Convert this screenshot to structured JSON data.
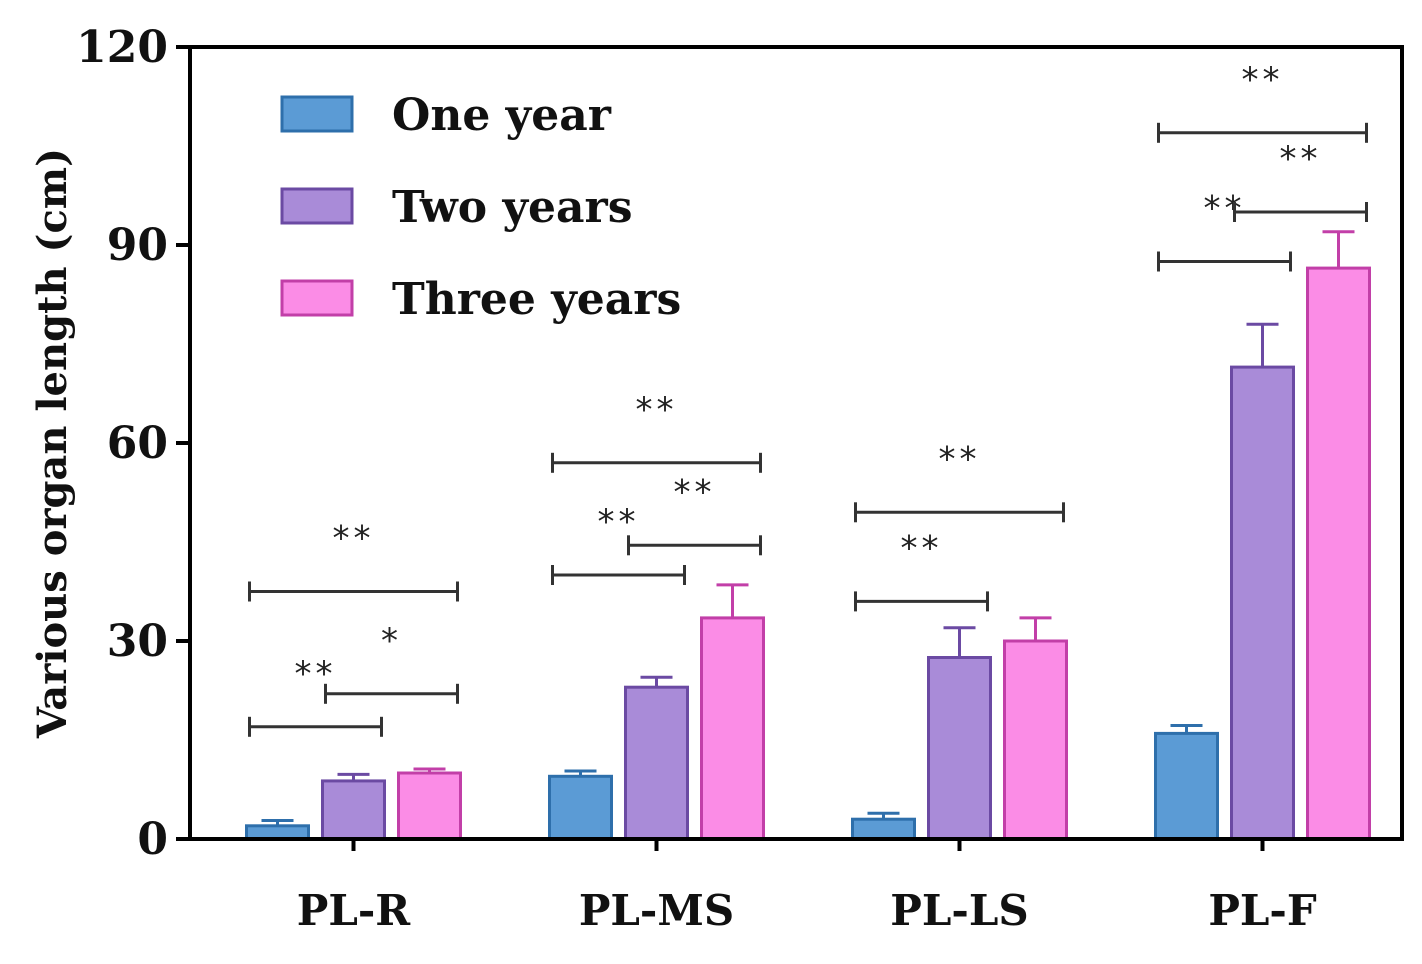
{
  "chart_data": {
    "type": "bar",
    "title": "",
    "xlabel": "",
    "ylabel": "Various organ length (cm)",
    "ylim": [
      0,
      120
    ],
    "yticks": [
      "0",
      "30",
      "60",
      "90",
      "120"
    ],
    "categories": [
      "PL-R",
      "PL-MS",
      "PL-LS",
      "PL-F"
    ],
    "legend_position": "top-left",
    "series": [
      {
        "name": "One year",
        "color": "#5b9bd5",
        "edge": "#2e6fab",
        "values": [
          2,
          9.5,
          3,
          16
        ],
        "errors": [
          0.8,
          0.8,
          0.9,
          1.2
        ]
      },
      {
        "name": "Two years",
        "color": "#a98bd8",
        "edge": "#6b4aa3",
        "values": [
          8.8,
          23,
          27.5,
          71.5
        ],
        "errors": [
          1.0,
          1.5,
          4.5,
          6.5
        ]
      },
      {
        "name": "Three years",
        "color": "#fb8ce6",
        "edge": "#c23fa8",
        "values": [
          10,
          33.5,
          30,
          86.5
        ],
        "errors": [
          0.6,
          5.0,
          3.5,
          5.5
        ]
      }
    ],
    "significance": [
      {
        "category": 0,
        "from": 0,
        "to": 1,
        "y": 17,
        "label": "**"
      },
      {
        "category": 0,
        "from": 1,
        "to": 2,
        "y": 22,
        "label": "*"
      },
      {
        "category": 0,
        "from": 0,
        "to": 2,
        "y": 37.5,
        "label": "**"
      },
      {
        "category": 1,
        "from": 0,
        "to": 1,
        "y": 40,
        "label": "**"
      },
      {
        "category": 1,
        "from": 1,
        "to": 2,
        "y": 44.5,
        "label": "**"
      },
      {
        "category": 1,
        "from": 0,
        "to": 2,
        "y": 57,
        "label": "**"
      },
      {
        "category": 2,
        "from": 0,
        "to": 1,
        "y": 36,
        "label": "**"
      },
      {
        "category": 2,
        "from": 0,
        "to": 2,
        "y": 49.5,
        "label": "**"
      },
      {
        "category": 3,
        "from": 0,
        "to": 1,
        "y": 87.5,
        "label": "**"
      },
      {
        "category": 3,
        "from": 1,
        "to": 2,
        "y": 95,
        "label": "**"
      },
      {
        "category": 3,
        "from": 0,
        "to": 2,
        "y": 107,
        "label": "**"
      }
    ]
  }
}
